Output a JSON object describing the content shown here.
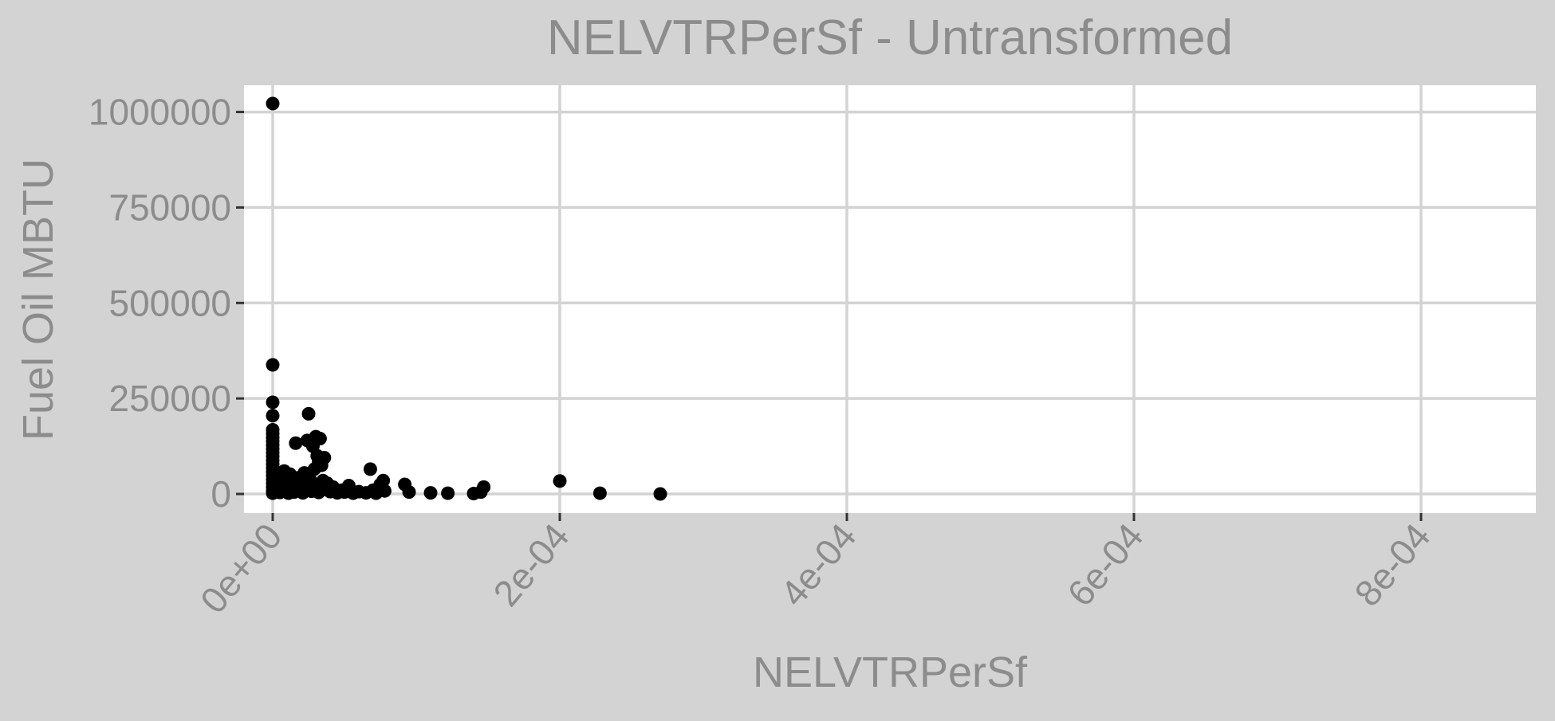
{
  "chart_data": {
    "type": "scatter",
    "title": "NELVTRPerSf - Untransformed",
    "xlabel": "NELVTRPerSf",
    "ylabel": "Fuel Oil MBTU",
    "xlim": [
      -2e-05,
      0.00088
    ],
    "ylim": [
      -50000,
      1070000
    ],
    "x_ticks": [
      0,
      0.0002,
      0.0004,
      0.0006,
      0.0008
    ],
    "x_tick_labels": [
      "0e+00",
      "2e-04",
      "4e-04",
      "6e-04",
      "8e-04"
    ],
    "y_ticks": [
      0,
      250000,
      500000,
      750000,
      1000000
    ],
    "y_tick_labels": [
      "0",
      "250000",
      "500000",
      "750000",
      "1000000"
    ],
    "grid": true,
    "colors": {
      "background": "#d3d3d3",
      "panel": "#ffffff",
      "grid": "#d3d3d3",
      "text": "#8c8c8c",
      "point": "#000000"
    },
    "points": [
      {
        "x": 0,
        "y": 1022000
      },
      {
        "x": 0,
        "y": 338000
      },
      {
        "x": 0,
        "y": 240000
      },
      {
        "x": 0,
        "y": 205000
      },
      {
        "x": 0,
        "y": 168000
      },
      {
        "x": 0,
        "y": 158000
      },
      {
        "x": 0,
        "y": 148000
      },
      {
        "x": 0,
        "y": 138000
      },
      {
        "x": 0,
        "y": 128000
      },
      {
        "x": 0,
        "y": 118000
      },
      {
        "x": 0,
        "y": 108000
      },
      {
        "x": 0,
        "y": 98000
      },
      {
        "x": 0,
        "y": 88000
      },
      {
        "x": 0,
        "y": 78000
      },
      {
        "x": 0,
        "y": 68000
      },
      {
        "x": 0,
        "y": 58000
      },
      {
        "x": 0,
        "y": 48000
      },
      {
        "x": 0,
        "y": 38000
      },
      {
        "x": 0,
        "y": 28000
      },
      {
        "x": 0,
        "y": 18000
      },
      {
        "x": 0,
        "y": 9000
      },
      {
        "x": 0,
        "y": 2000
      },
      {
        "x": 3e-06,
        "y": 12000
      },
      {
        "x": 4e-06,
        "y": 30000
      },
      {
        "x": 5e-06,
        "y": 4000
      },
      {
        "x": 6e-06,
        "y": 45000
      },
      {
        "x": 7e-06,
        "y": 20000
      },
      {
        "x": 8e-06,
        "y": 60000
      },
      {
        "x": 9e-06,
        "y": 8000
      },
      {
        "x": 1e-05,
        "y": 35000
      },
      {
        "x": 1.1e-05,
        "y": 2000
      },
      {
        "x": 1.2e-05,
        "y": 52000
      },
      {
        "x": 1.3e-05,
        "y": 15000
      },
      {
        "x": 1.4e-05,
        "y": 25000
      },
      {
        "x": 1.5e-05,
        "y": 5000
      },
      {
        "x": 1.6e-05,
        "y": 133000
      },
      {
        "x": 1.7e-05,
        "y": 42000
      },
      {
        "x": 1.8e-05,
        "y": 10000
      },
      {
        "x": 2e-05,
        "y": 30000
      },
      {
        "x": 2.1e-05,
        "y": 3000
      },
      {
        "x": 2.2e-05,
        "y": 55000
      },
      {
        "x": 2.3e-05,
        "y": 18000
      },
      {
        "x": 2.4e-05,
        "y": 140000
      },
      {
        "x": 2.5e-05,
        "y": 210000
      },
      {
        "x": 2.6e-05,
        "y": 38000
      },
      {
        "x": 2.7e-05,
        "y": 7000
      },
      {
        "x": 2.8e-05,
        "y": 125000
      },
      {
        "x": 2.9e-05,
        "y": 65000
      },
      {
        "x": 3e-05,
        "y": 150000
      },
      {
        "x": 3e-05,
        "y": 20000
      },
      {
        "x": 3.1e-05,
        "y": 100000
      },
      {
        "x": 3.2e-05,
        "y": 85000
      },
      {
        "x": 3.2e-05,
        "y": 4000
      },
      {
        "x": 3.3e-05,
        "y": 145000
      },
      {
        "x": 3.4e-05,
        "y": 75000
      },
      {
        "x": 3.5e-05,
        "y": 35000
      },
      {
        "x": 3.6e-05,
        "y": 95000
      },
      {
        "x": 3.7e-05,
        "y": 12000
      },
      {
        "x": 3.8e-05,
        "y": 28000
      },
      {
        "x": 4e-05,
        "y": 6000
      },
      {
        "x": 4.2e-05,
        "y": 18000
      },
      {
        "x": 4.5e-05,
        "y": 3000
      },
      {
        "x": 4.8e-05,
        "y": 10000
      },
      {
        "x": 5e-05,
        "y": 5000
      },
      {
        "x": 5.3e-05,
        "y": 22000
      },
      {
        "x": 5.6e-05,
        "y": 2000
      },
      {
        "x": 6e-05,
        "y": 6000
      },
      {
        "x": 6.5e-05,
        "y": 3000
      },
      {
        "x": 6.8e-05,
        "y": 65000
      },
      {
        "x": 7e-05,
        "y": 10000
      },
      {
        "x": 7.2e-05,
        "y": 2000
      },
      {
        "x": 7.5e-05,
        "y": 25000
      },
      {
        "x": 7.7e-05,
        "y": 35000
      },
      {
        "x": 7.8e-05,
        "y": 8000
      },
      {
        "x": 9.2e-05,
        "y": 25000
      },
      {
        "x": 9.5e-05,
        "y": 5000
      },
      {
        "x": 0.00011,
        "y": 3000
      },
      {
        "x": 0.000122,
        "y": 2000
      },
      {
        "x": 0.00014,
        "y": 1000
      },
      {
        "x": 0.000145,
        "y": 5000
      },
      {
        "x": 0.000147,
        "y": 18000
      },
      {
        "x": 0.0002,
        "y": 34000
      },
      {
        "x": 0.000228,
        "y": 2000
      },
      {
        "x": 0.00027,
        "y": 0
      }
    ]
  }
}
